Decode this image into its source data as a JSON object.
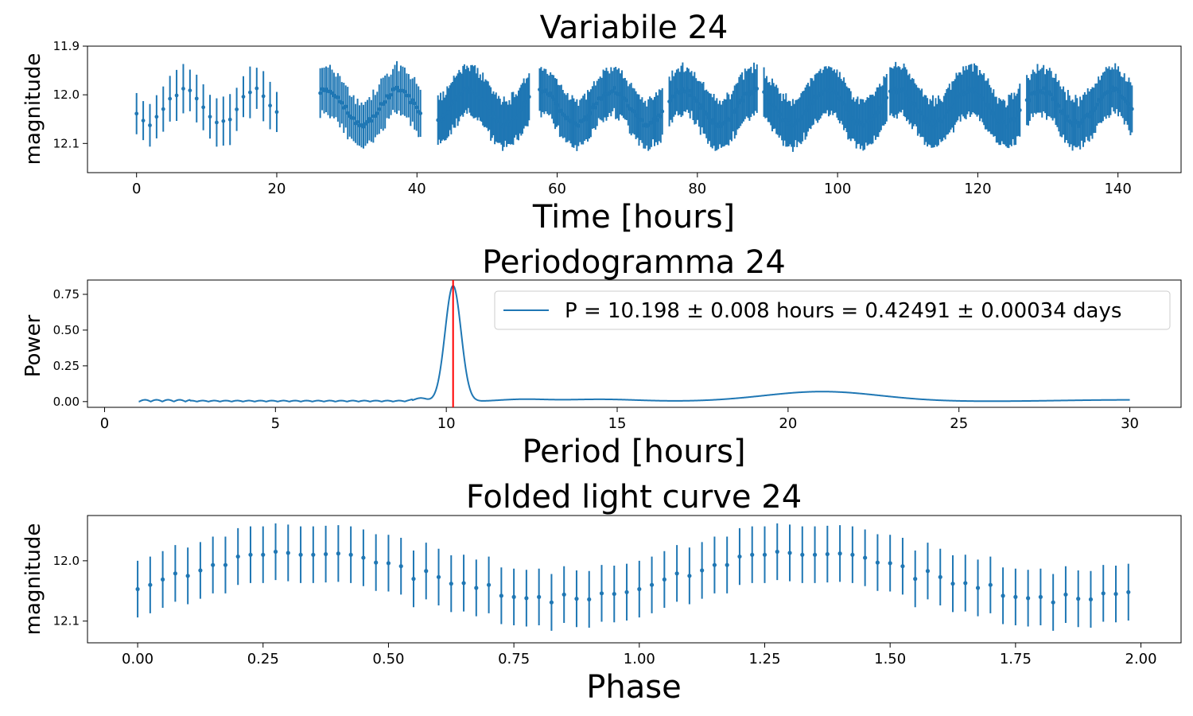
{
  "chart_data": [
    {
      "type": "scatter",
      "title": "Variabile 24",
      "xlabel": "Time [hours]",
      "ylabel": "magnitude",
      "xlim": [
        -7,
        149
      ],
      "ylim": [
        12.16,
        11.9
      ],
      "y_inverted": true,
      "xticks": [
        0,
        20,
        40,
        60,
        80,
        100,
        120,
        140
      ],
      "yticks": [
        11.9,
        12.0,
        12.1
      ],
      "ytick_labels": [
        "11.9",
        "12.0",
        "12.1"
      ],
      "error_bars": true,
      "color": "#1f77b4",
      "series": [
        {
          "segments": [
            {
              "t0": 0,
              "t1": 20,
              "n": 22
            },
            {
              "t0": 26.2,
              "t1": 40.5,
              "n": 52
            },
            {
              "t0": 43,
              "t1": 56,
              "n": 70
            },
            {
              "t0": 57.5,
              "t1": 75,
              "n": 80
            },
            {
              "t0": 76,
              "t1": 88.5,
              "n": 60
            },
            {
              "t0": 89.5,
              "t1": 107,
              "n": 90
            },
            {
              "t0": 107.5,
              "t1": 126,
              "n": 95
            },
            {
              "t0": 127,
              "t1": 142,
              "n": 70
            }
          ],
          "mean_magnitude": 12.025,
          "amplitude": 0.035,
          "period_hours": 10.198,
          "phase_offset": 0.6,
          "error": 0.05
        }
      ]
    },
    {
      "type": "line",
      "title": "Periodogramma 24",
      "xlabel": "Period [hours]",
      "ylabel": "Power",
      "xlim": [
        -0.5,
        31.5
      ],
      "ylim": [
        -0.04,
        0.85
      ],
      "xticks": [
        0,
        5,
        10,
        15,
        20,
        25,
        30
      ],
      "yticks": [
        0.0,
        0.25,
        0.5,
        0.75
      ],
      "ytick_labels": [
        "0.00",
        "0.25",
        "0.50",
        "0.75"
      ],
      "x_range": [
        1,
        30
      ],
      "peak_period": 10.198,
      "peak_power": 0.81,
      "secondary_peak_period": 21,
      "secondary_peak_power": 0.07,
      "color": "#1f77b4",
      "marker_color": "#ff0000",
      "legend": {
        "placement": "top-right",
        "entries": [
          "P = 10.198 ± 0.008 hours = 0.42491 ± 0.00034 days"
        ]
      }
    },
    {
      "type": "scatter",
      "title": "Folded light curve 24",
      "xlabel": "Phase",
      "ylabel": "magnitude",
      "xlim": [
        -0.1,
        2.08
      ],
      "ylim": [
        12.136,
        11.925
      ],
      "y_inverted": true,
      "xticks": [
        0.0,
        0.25,
        0.5,
        0.75,
        1.0,
        1.25,
        1.5,
        1.75,
        2.0
      ],
      "xtick_labels": [
        "0.00",
        "0.25",
        "0.50",
        "0.75",
        "1.00",
        "1.25",
        "1.50",
        "1.75",
        "2.00"
      ],
      "yticks": [
        12.0,
        12.1
      ],
      "ytick_labels": [
        "12.0",
        "12.1"
      ],
      "error_bars": true,
      "error": 0.047,
      "color": "#1f77b4",
      "phase": [
        0.0,
        0.025,
        0.05,
        0.075,
        0.1,
        0.125,
        0.15,
        0.175,
        0.2,
        0.225,
        0.25,
        0.275,
        0.3,
        0.325,
        0.35,
        0.375,
        0.4,
        0.425,
        0.45,
        0.475,
        0.5,
        0.525,
        0.55,
        0.575,
        0.6,
        0.625,
        0.65,
        0.675,
        0.7,
        0.725,
        0.75,
        0.775,
        0.8,
        0.825,
        0.85,
        0.875,
        0.9,
        0.925,
        0.95,
        0.975
      ],
      "magnitude": [
        12.047,
        12.04,
        12.031,
        12.021,
        12.025,
        12.016,
        12.007,
        12.007,
        11.993,
        11.99,
        11.99,
        11.985,
        11.987,
        11.99,
        11.99,
        11.989,
        11.988,
        11.99,
        11.995,
        12.003,
        12.004,
        12.009,
        12.03,
        12.017,
        12.027,
        12.038,
        12.037,
        12.045,
        12.04,
        12.058,
        12.06,
        12.062,
        12.06,
        12.069,
        12.056,
        12.063,
        12.064,
        12.054,
        12.055,
        12.052
      ]
    }
  ]
}
